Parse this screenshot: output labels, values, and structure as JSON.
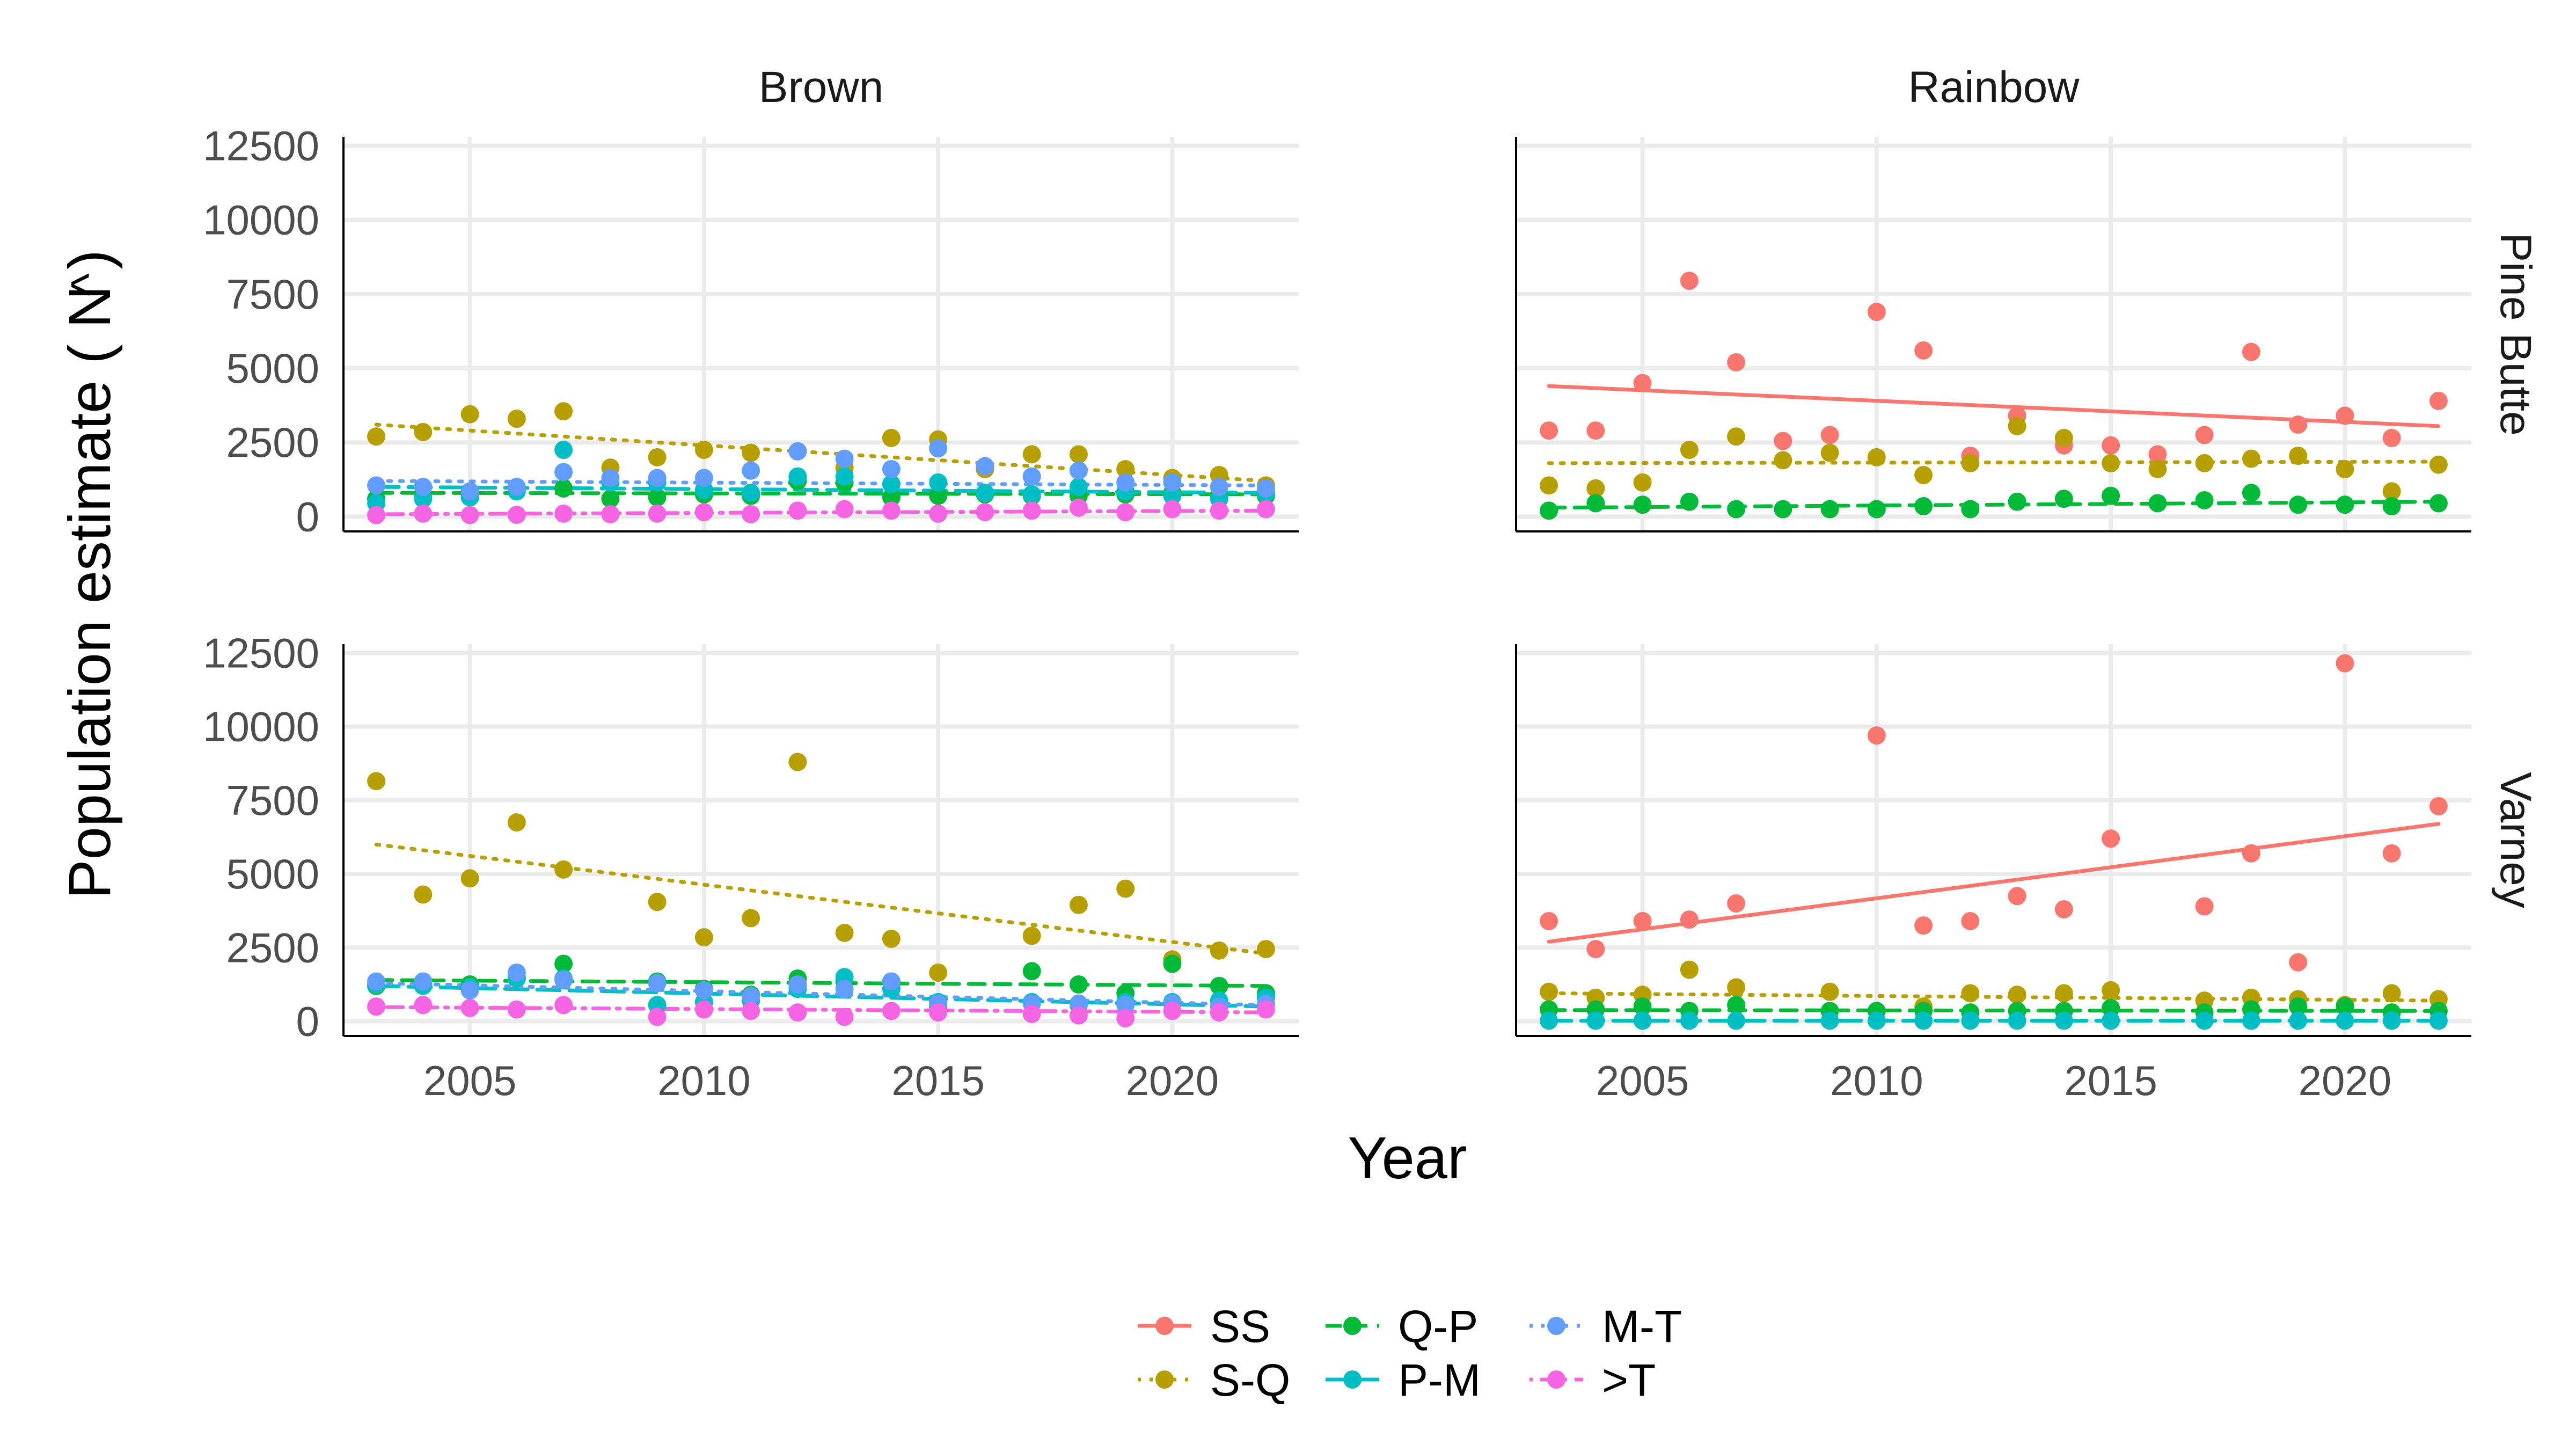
{
  "chart_data": {
    "type": "scatter",
    "facet_columns": [
      "Brown",
      "Rainbow"
    ],
    "facet_rows": [
      "Pine Butte",
      "Varney"
    ],
    "xlabel": "Year",
    "ylabel": "Population estimate",
    "ylabel_symbol": "N",
    "ylabel_hat": "^",
    "ylabel_open": "(",
    "ylabel_close": ")",
    "xlim": [
      2002.3,
      2022.7
    ],
    "ylim": [
      -500,
      12800
    ],
    "xticks": [
      2005,
      2010,
      2015,
      2020
    ],
    "yticks": [
      0,
      2500,
      5000,
      7500,
      10000,
      12500
    ],
    "grid": true,
    "legend_position": "bottom",
    "series_styles": [
      {
        "name": "SS",
        "color": "#F8766D",
        "dash": "solid"
      },
      {
        "name": "S-Q",
        "color": "#B79F00",
        "dash": "dotted"
      },
      {
        "name": "Q-P",
        "color": "#00BA38",
        "dash": "dashed"
      },
      {
        "name": "P-M",
        "color": "#00BFC4",
        "dash": "longdash"
      },
      {
        "name": "M-T",
        "color": "#619CFF",
        "dash": "dotted"
      },
      {
        "name": ">T",
        "color": "#F564E3",
        "dash": "dotdash"
      }
    ],
    "panels": [
      {
        "column": "Brown",
        "row": "Pine Butte",
        "series": [
          {
            "name": "S-Q",
            "x": [
              2003,
              2004,
              2005,
              2006,
              2007,
              2008,
              2009,
              2010,
              2011,
              2012,
              2013,
              2014,
              2015,
              2016,
              2017,
              2018,
              2019,
              2020,
              2021,
              2022
            ],
            "y": [
              2700,
              2850,
              3450,
              3300,
              3550,
              1650,
              2000,
              2250,
              2150,
              2200,
              1650,
              2650,
              2600,
              1600,
              2100,
              2100,
              1600,
              1300,
              1400,
              1050
            ],
            "trend": [
              3100,
              1200
            ]
          },
          {
            "name": "Q-P",
            "x": [
              2003,
              2004,
              2005,
              2006,
              2007,
              2008,
              2009,
              2010,
              2011,
              2012,
              2013,
              2014,
              2015,
              2016,
              2017,
              2018,
              2019,
              2020,
              2021,
              2022
            ],
            "y": [
              600,
              650,
              700,
              900,
              950,
              600,
              650,
              750,
              700,
              1200,
              1150,
              650,
              700,
              750,
              700,
              700,
              750,
              800,
              700,
              700
            ],
            "trend": [
              800,
              750
            ]
          },
          {
            "name": "P-M",
            "x": [
              2003,
              2004,
              2005,
              2006,
              2007,
              2008,
              2009,
              2010,
              2011,
              2012,
              2013,
              2014,
              2015,
              2016,
              2017,
              2018,
              2019,
              2020,
              2021,
              2022
            ],
            "y": [
              450,
              600,
              650,
              850,
              2250,
              1150,
              1150,
              900,
              800,
              1350,
              1350,
              1100,
              1150,
              800,
              750,
              1000,
              850,
              700,
              600,
              800
            ],
            "trend": [
              1000,
              800
            ]
          },
          {
            "name": "M-T",
            "x": [
              2003,
              2004,
              2005,
              2006,
              2007,
              2008,
              2009,
              2010,
              2011,
              2012,
              2013,
              2014,
              2015,
              2016,
              2017,
              2018,
              2019,
              2020,
              2021,
              2022
            ],
            "y": [
              1050,
              1000,
              850,
              1000,
              1500,
              1300,
              1300,
              1300,
              1550,
              2200,
              1950,
              1600,
              2300,
              1700,
              1350,
              1550,
              1150,
              1150,
              1000,
              950
            ],
            "trend": [
              1200,
              1050
            ]
          },
          {
            "name": ">T",
            "x": [
              2003,
              2004,
              2005,
              2006,
              2007,
              2008,
              2009,
              2010,
              2011,
              2012,
              2013,
              2014,
              2015,
              2016,
              2017,
              2018,
              2019,
              2020,
              2021,
              2022
            ],
            "y": [
              50,
              100,
              50,
              60,
              100,
              80,
              100,
              150,
              80,
              200,
              250,
              200,
              100,
              150,
              200,
              300,
              150,
              250,
              200,
              250
            ],
            "trend": [
              80,
              200
            ]
          }
        ]
      },
      {
        "column": "Rainbow",
        "row": "Pine Butte",
        "series": [
          {
            "name": "SS",
            "x": [
              2003,
              2004,
              2005,
              2006,
              2007,
              2008,
              2009,
              2010,
              2011,
              2012,
              2013,
              2014,
              2015,
              2016,
              2017,
              2018,
              2019,
              2020,
              2021,
              2022
            ],
            "y": [
              2900,
              2900,
              4500,
              7950,
              5200,
              2550,
              2750,
              6900,
              5600,
              2050,
              3400,
              2400,
              2400,
              2100,
              2750,
              5550,
              3100,
              3400,
              2650,
              3900
            ],
            "trend": [
              4400,
              3050
            ]
          },
          {
            "name": "S-Q",
            "x": [
              2003,
              2004,
              2005,
              2006,
              2007,
              2008,
              2009,
              2010,
              2011,
              2012,
              2013,
              2014,
              2015,
              2016,
              2017,
              2018,
              2019,
              2020,
              2021,
              2022
            ],
            "y": [
              1050,
              950,
              1150,
              2250,
              2700,
              1900,
              2150,
              2000,
              1400,
              1800,
              3050,
              2650,
              1800,
              1600,
              1800,
              1950,
              2050,
              1600,
              850,
              1750
            ],
            "trend": [
              1800,
              1850
            ]
          },
          {
            "name": "Q-P",
            "x": [
              2003,
              2004,
              2005,
              2006,
              2007,
              2008,
              2009,
              2010,
              2011,
              2012,
              2013,
              2014,
              2015,
              2016,
              2017,
              2018,
              2019,
              2020,
              2021,
              2022
            ],
            "y": [
              200,
              450,
              400,
              500,
              250,
              250,
              250,
              250,
              350,
              250,
              500,
              600,
              700,
              450,
              550,
              800,
              400,
              400,
              350,
              450
            ],
            "trend": [
              300,
              500
            ]
          }
        ]
      },
      {
        "column": "Brown",
        "row": "Varney",
        "series": [
          {
            "name": "S-Q",
            "x": [
              2003,
              2004,
              2005,
              2006,
              2007,
              2009,
              2010,
              2011,
              2012,
              2013,
              2014,
              2015,
              2017,
              2018,
              2019,
              2020,
              2021,
              2022
            ],
            "y": [
              8150,
              4300,
              4850,
              6750,
              5150,
              4050,
              2850,
              3500,
              8800,
              3000,
              2800,
              1650,
              2900,
              3950,
              4500,
              2100,
              2400,
              2450
            ],
            "trend": [
              6000,
              2300
            ]
          },
          {
            "name": "Q-P",
            "x": [
              2003,
              2004,
              2005,
              2006,
              2007,
              2009,
              2010,
              2011,
              2012,
              2013,
              2014,
              2015,
              2017,
              2018,
              2019,
              2020,
              2021,
              2022
            ],
            "y": [
              1200,
              1350,
              1250,
              1500,
              1950,
              1350,
              1100,
              900,
              1450,
              1350,
              1350,
              500,
              1700,
              1250,
              950,
              1950,
              1200,
              950
            ],
            "trend": [
              1400,
              1200
            ]
          },
          {
            "name": "P-M",
            "x": [
              2003,
              2004,
              2005,
              2006,
              2007,
              2009,
              2010,
              2011,
              2012,
              2013,
              2014,
              2015,
              2017,
              2018,
              2019,
              2020,
              2021,
              2022
            ],
            "y": [
              1250,
              1200,
              1150,
              1450,
              1450,
              550,
              650,
              700,
              1100,
              1500,
              1100,
              650,
              650,
              550,
              650,
              650,
              700,
              800
            ],
            "trend": [
              1200,
              500
            ]
          },
          {
            "name": "M-T",
            "x": [
              2003,
              2004,
              2005,
              2006,
              2007,
              2009,
              2010,
              2011,
              2012,
              2013,
              2014,
              2015,
              2017,
              2018,
              2019,
              2020,
              2021,
              2022
            ],
            "y": [
              1350,
              1350,
              1050,
              1650,
              1400,
              1300,
              1050,
              850,
              1250,
              1100,
              1350,
              600,
              600,
              600,
              550,
              600,
              500,
              600
            ],
            "trend": [
              1300,
              550
            ]
          },
          {
            "name": ">T",
            "x": [
              2003,
              2004,
              2005,
              2006,
              2007,
              2009,
              2010,
              2011,
              2012,
              2013,
              2014,
              2015,
              2017,
              2018,
              2019,
              2020,
              2021,
              2022
            ],
            "y": [
              500,
              550,
              450,
              400,
              550,
              150,
              400,
              350,
              300,
              150,
              350,
              300,
              250,
              200,
              100,
              350,
              300,
              400
            ],
            "trend": [
              480,
              300
            ]
          }
        ]
      },
      {
        "column": "Rainbow",
        "row": "Varney",
        "series": [
          {
            "name": "SS",
            "x": [
              2003,
              2004,
              2005,
              2006,
              2007,
              2010,
              2011,
              2012,
              2013,
              2014,
              2015,
              2017,
              2018,
              2019,
              2020,
              2021,
              2022
            ],
            "y": [
              3400,
              2450,
              3400,
              3450,
              4000,
              9700,
              3250,
              3400,
              4250,
              3800,
              6200,
              3900,
              5700,
              2000,
              12150,
              5700,
              7300
            ],
            "trend": [
              2700,
              6700
            ]
          },
          {
            "name": "S-Q",
            "x": [
              2003,
              2004,
              2005,
              2006,
              2007,
              2009,
              2011,
              2012,
              2013,
              2014,
              2015,
              2017,
              2018,
              2019,
              2020,
              2021,
              2022
            ],
            "y": [
              1000,
              800,
              900,
              1750,
              1150,
              1000,
              500,
              950,
              900,
              950,
              1050,
              700,
              800,
              750,
              550,
              950,
              750
            ],
            "trend": [
              950,
              700
            ]
          },
          {
            "name": "Q-P",
            "x": [
              2003,
              2004,
              2005,
              2006,
              2007,
              2009,
              2010,
              2011,
              2012,
              2013,
              2014,
              2015,
              2017,
              2018,
              2019,
              2020,
              2021,
              2022
            ],
            "y": [
              400,
              400,
              500,
              350,
              550,
              350,
              350,
              350,
              300,
              350,
              350,
              450,
              300,
              400,
              500,
              500,
              300,
              350
            ],
            "trend": [
              380,
              350
            ]
          },
          {
            "name": "P-M",
            "x": [
              2003,
              2004,
              2005,
              2006,
              2007,
              2009,
              2010,
              2011,
              2012,
              2013,
              2014,
              2015,
              2017,
              2018,
              2019,
              2020,
              2021,
              2022
            ],
            "y": [
              20,
              20,
              20,
              20,
              20,
              20,
              20,
              20,
              20,
              20,
              20,
              20,
              20,
              20,
              20,
              20,
              20,
              20
            ],
            "trend": [
              20,
              20
            ]
          }
        ]
      }
    ]
  }
}
